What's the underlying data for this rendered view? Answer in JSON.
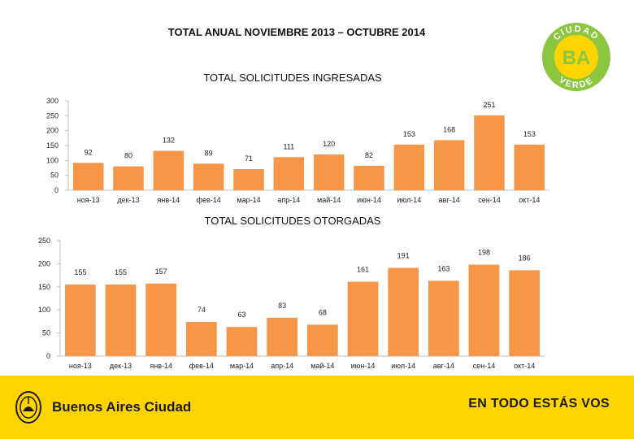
{
  "page_title": "TOTAL ANUAL NOVIEMBRE 2013 – OCTUBRE 2014",
  "logo": {
    "top_text": "CIUDAD",
    "mark": "BA",
    "bottom_text": "VERDE"
  },
  "colors": {
    "bar": "#f79646",
    "logo_green": "#8cc63f",
    "logo_yellow": "#ffd400",
    "footer": "#ffd400"
  },
  "chart_data": [
    {
      "type": "bar",
      "title": "TOTAL SOLICITUDES INGRESADAS",
      "categories": [
        "ноя-13",
        "дек-13",
        "янв-14",
        "фев-14",
        "мар-14",
        "апр-14",
        "май-14",
        "июн-14",
        "июл-14",
        "авг-14",
        "сен-14",
        "окт-14"
      ],
      "values": [
        92,
        80,
        132,
        89,
        71,
        111,
        120,
        82,
        153,
        168,
        251,
        153
      ],
      "ylim": [
        0,
        300
      ],
      "yticks": [
        0,
        50,
        100,
        150,
        200,
        250,
        300
      ],
      "xlabel": "",
      "ylabel": ""
    },
    {
      "type": "bar",
      "title": "TOTAL SOLICITUDES OTORGADAS",
      "categories": [
        "ноя-13",
        "дек-13",
        "янв-14",
        "фев-14",
        "мар-14",
        "апр-14",
        "май-14",
        "июн-14",
        "июл-14",
        "авг-14",
        "сен-14",
        "окт-14"
      ],
      "values": [
        155,
        155,
        157,
        74,
        63,
        83,
        68,
        161,
        191,
        163,
        198,
        186
      ],
      "ylim": [
        0,
        250
      ],
      "yticks": [
        0,
        50,
        100,
        150,
        200,
        250
      ],
      "xlabel": "",
      "ylabel": ""
    }
  ],
  "footer": {
    "brand": "Buenos Aires Ciudad",
    "slogan": "EN TODO ESTÁS VOS"
  }
}
